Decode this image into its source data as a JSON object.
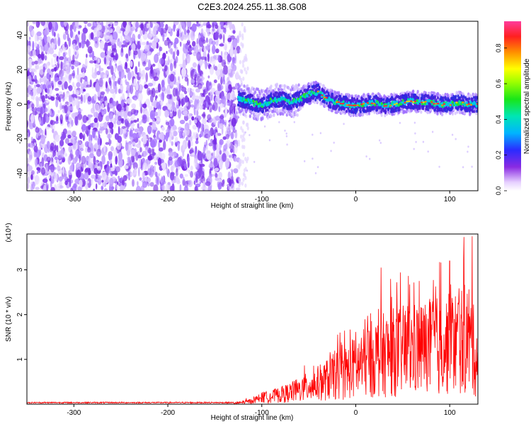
{
  "title": "C2E3.2024.255.11.38.G08",
  "chart_data": [
    {
      "type": "heatmap",
      "xlabel": "Height of straight line (km)",
      "ylabel": "Frequency (Hz)",
      "xlim": [
        -350,
        130
      ],
      "ylim": [
        -50,
        48
      ],
      "xticks": [
        -300,
        -200,
        -100,
        0,
        100
      ],
      "yticks": [
        -40,
        -20,
        0,
        20,
        40
      ],
      "colorbar": {
        "label": "Normalized spectral amplitude",
        "range": [
          0.0,
          0.95
        ],
        "ticks": [
          0.0,
          0.2,
          0.4,
          0.6,
          0.8
        ]
      },
      "noise_region_x": [
        -350,
        -125
      ],
      "signal_track": {
        "x": [
          -125,
          -110,
          -100,
          -90,
          -80,
          -70,
          -60,
          -50,
          -40,
          -35,
          -30,
          -20,
          -10,
          0,
          10,
          20,
          30,
          40,
          50,
          60,
          70,
          80,
          90,
          100,
          110,
          120,
          130
        ],
        "freq": [
          3,
          1,
          -1,
          2,
          3,
          1,
          3,
          6,
          7,
          5,
          3,
          1,
          0,
          -1,
          0,
          1,
          -1,
          0,
          1,
          2,
          1,
          1,
          0,
          0,
          1,
          0,
          0
        ]
      }
    },
    {
      "type": "line",
      "xlabel": "Height of straight line (km)",
      "ylabel": "SNR (10 * v/v)",
      "yscale_label": "(x10⁴)",
      "xlim": [
        -350,
        130
      ],
      "ylim": [
        0,
        3.8
      ],
      "xticks": [
        -300,
        -200,
        -100,
        0,
        100
      ],
      "yticks": [
        1,
        2,
        3
      ],
      "color": "#ff0000",
      "envelope": {
        "x": [
          -350,
          -130,
          -110,
          -100,
          -80,
          -60,
          -40,
          -20,
          0,
          20,
          40,
          60,
          80,
          100,
          120,
          130
        ],
        "y": [
          0.02,
          0.03,
          0.12,
          0.25,
          0.35,
          0.55,
          0.8,
          1.1,
          1.4,
          1.8,
          2.0,
          2.1,
          2.2,
          2.3,
          2.6,
          1.6
        ]
      },
      "peaks": [
        {
          "x": 27,
          "y": 3.05
        },
        {
          "x": 100,
          "y": 3.2
        },
        {
          "x": 124,
          "y": 3.75
        }
      ]
    }
  ]
}
